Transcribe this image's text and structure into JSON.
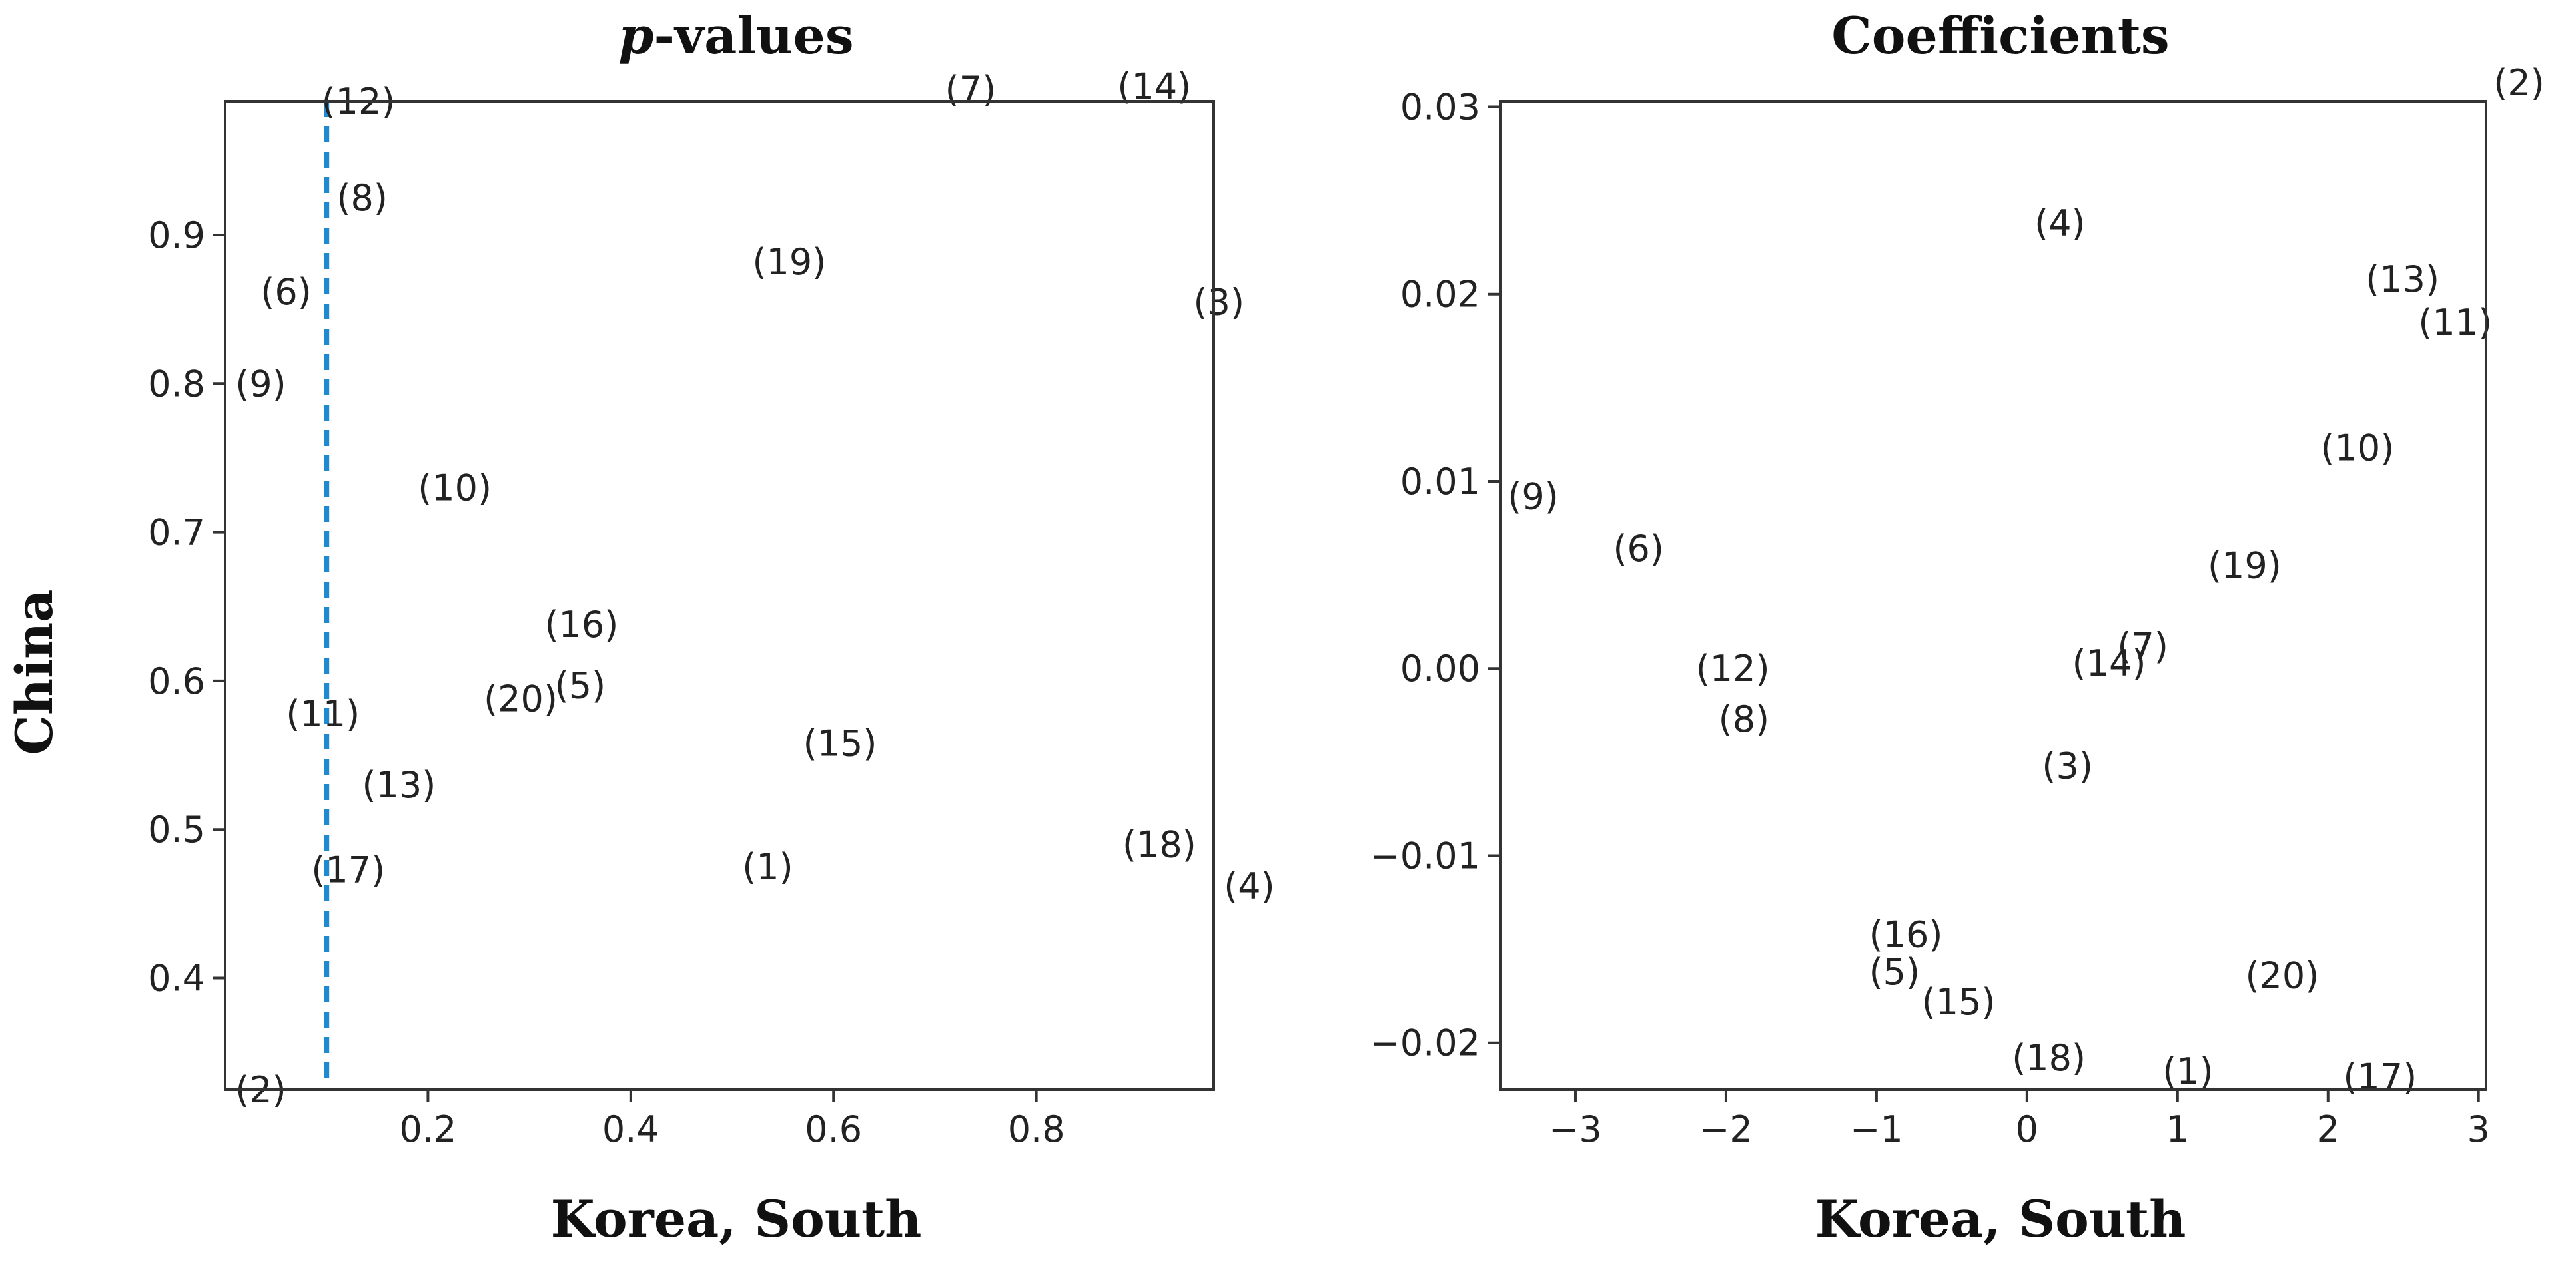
{
  "chart_data": [
    {
      "type": "scatter",
      "title": "p-values",
      "title_italic_part": "p",
      "title_rest": "-values",
      "xlabel": "Korea, South",
      "ylabel": "China",
      "xlim": [
        0.0,
        0.975
      ],
      "ylim": [
        0.325,
        0.99
      ],
      "xticks": [
        0.2,
        0.4,
        0.6,
        0.8
      ],
      "xtick_labels": [
        "0.2",
        "0.4",
        "0.6",
        "0.8"
      ],
      "yticks": [
        0.4,
        0.5,
        0.6,
        0.7,
        0.8,
        0.9
      ],
      "ytick_labels": [
        "0.4",
        "0.5",
        "0.6",
        "0.7",
        "0.8",
        "0.9"
      ],
      "reference_line": {
        "axis": "x",
        "value": 0.1,
        "style": "dashed",
        "color": "#1f8ad0"
      },
      "grid": false,
      "points": [
        {
          "label": "(1)",
          "x": 0.51,
          "y": 0.475
        },
        {
          "label": "(2)",
          "x": 0.01,
          "y": 0.325
        },
        {
          "label": "(3)",
          "x": 0.955,
          "y": 0.855
        },
        {
          "label": "(4)",
          "x": 0.985,
          "y": 0.462
        },
        {
          "label": "(5)",
          "x": 0.325,
          "y": 0.597
        },
        {
          "label": "(6)",
          "x": 0.035,
          "y": 0.862
        },
        {
          "label": "(7)",
          "x": 0.71,
          "y": 0.998
        },
        {
          "label": "(8)",
          "x": 0.11,
          "y": 0.925
        },
        {
          "label": "(9)",
          "x": 0.01,
          "y": 0.8
        },
        {
          "label": "(10)",
          "x": 0.19,
          "y": 0.73
        },
        {
          "label": "(11)",
          "x": 0.06,
          "y": 0.578
        },
        {
          "label": "(12)",
          "x": 0.095,
          "y": 0.99
        },
        {
          "label": "(13)",
          "x": 0.135,
          "y": 0.53
        },
        {
          "label": "(14)",
          "x": 0.88,
          "y": 1.0
        },
        {
          "label": "(15)",
          "x": 0.57,
          "y": 0.558
        },
        {
          "label": "(16)",
          "x": 0.315,
          "y": 0.638
        },
        {
          "label": "(17)",
          "x": 0.085,
          "y": 0.473
        },
        {
          "label": "(18)",
          "x": 0.885,
          "y": 0.49
        },
        {
          "label": "(19)",
          "x": 0.52,
          "y": 0.882
        },
        {
          "label": "(20)",
          "x": 0.255,
          "y": 0.588
        }
      ]
    },
    {
      "type": "scatter",
      "title": "Coefficients",
      "xlabel": "Korea, South",
      "ylabel": "",
      "xlim": [
        -3.5,
        3.05
      ],
      "ylim": [
        -0.0225,
        0.0303
      ],
      "xticks": [
        -3,
        -2,
        -1,
        0,
        1,
        2,
        3
      ],
      "xtick_labels": [
        "−3",
        "−2",
        "−1",
        "0",
        "1",
        "2",
        "3"
      ],
      "yticks": [
        -0.02,
        -0.01,
        0.0,
        0.01,
        0.02,
        0.03
      ],
      "ytick_labels": [
        "−0.02",
        "−0.01",
        "0.00",
        "0.01",
        "0.02",
        "0.03"
      ],
      "grid": false,
      "points": [
        {
          "label": "(1)",
          "x": 0.9,
          "y": -0.0215
        },
        {
          "label": "(2)",
          "x": 3.1,
          "y": 0.0313
        },
        {
          "label": "(3)",
          "x": 0.1,
          "y": -0.0052
        },
        {
          "label": "(4)",
          "x": 0.05,
          "y": 0.0238
        },
        {
          "label": "(5)",
          "x": -1.05,
          "y": -0.0162
        },
        {
          "label": "(6)",
          "x": -2.75,
          "y": 0.0064
        },
        {
          "label": "(7)",
          "x": 0.6,
          "y": 0.0012
        },
        {
          "label": "(8)",
          "x": -2.05,
          "y": -0.0027
        },
        {
          "label": "(9)",
          "x": -3.45,
          "y": 0.0092
        },
        {
          "label": "(10)",
          "x": 1.95,
          "y": 0.0118
        },
        {
          "label": "(11)",
          "x": 2.6,
          "y": 0.0185
        },
        {
          "label": "(12)",
          "x": -2.2,
          "y": 0.0
        },
        {
          "label": "(13)",
          "x": 2.25,
          "y": 0.0208
        },
        {
          "label": "(14)",
          "x": 0.3,
          "y": 0.0003
        },
        {
          "label": "(15)",
          "x": -0.7,
          "y": -0.0178
        },
        {
          "label": "(16)",
          "x": -1.05,
          "y": -0.0142
        },
        {
          "label": "(17)",
          "x": 2.1,
          "y": -0.0218
        },
        {
          "label": "(18)",
          "x": -0.1,
          "y": -0.0208
        },
        {
          "label": "(19)",
          "x": 1.2,
          "y": 0.0055
        },
        {
          "label": "(20)",
          "x": 1.45,
          "y": -0.0164
        }
      ]
    }
  ]
}
